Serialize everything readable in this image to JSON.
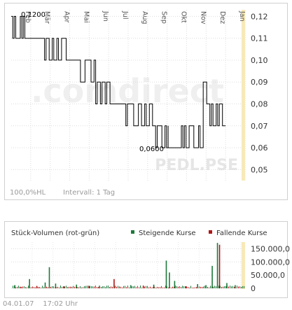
{
  "watermark": {
    "brand": ".comdirect",
    "ticker": "PEDL.PSE"
  },
  "price_chart": {
    "status": {
      "scale": "100,0%HL",
      "interval": "Intervall: 1 Tag"
    },
    "high_label": "0,1200",
    "low_label": "0,0600",
    "colors": {
      "line": "#000000",
      "grid": "#d9d9d9",
      "band": "#f7e9b8",
      "watermark": "#efefef"
    }
  },
  "volume_chart": {
    "title": "Stück-Volumen (rot-grün)",
    "legend": [
      {
        "label": "Steigende Kurse",
        "color": "#1d7a3a"
      },
      {
        "label": "Fallende Kurse",
        "color": "#b01616"
      }
    ]
  },
  "footer": {
    "date": "04.01.07",
    "time": "17:02 Uhr"
  },
  "chart_data": [
    {
      "type": "line",
      "x_ticks": [
        "Feb",
        "Mär",
        "Apr",
        "Mai",
        "Jun",
        "Jul",
        "Aug",
        "Sep",
        "Okt",
        "Nov",
        "Dez",
        "Jan"
      ],
      "y_ticks": [
        "0,12",
        "0,11",
        "0,10",
        "0,09",
        "0,08",
        "0,07",
        "0,06",
        "0,05"
      ],
      "ylim": [
        0.045,
        0.123
      ],
      "y_tick_values": [
        0.12,
        0.11,
        0.1,
        0.09,
        0.08,
        0.07,
        0.06,
        0.05
      ],
      "high": 0.12,
      "low": 0.06,
      "segments": [
        {
          "from": 0.0,
          "to": 0.7,
          "low": 0.11,
          "high": 0.12,
          "dense": true
        },
        {
          "from": 0.7,
          "to": 1.55,
          "low": 0.11,
          "high": 0.11,
          "dense": false
        },
        {
          "from": 1.55,
          "to": 2.9,
          "low": 0.1,
          "high": 0.11,
          "dense": true
        },
        {
          "from": 2.9,
          "to": 3.4,
          "low": 0.1,
          "high": 0.1,
          "dense": false
        },
        {
          "from": 3.4,
          "to": 4.25,
          "low": 0.09,
          "high": 0.1,
          "dense": true
        },
        {
          "from": 4.25,
          "to": 5.15,
          "low": 0.08,
          "high": 0.09,
          "dense": true
        },
        {
          "from": 5.15,
          "to": 5.8,
          "low": 0.08,
          "high": 0.08,
          "dense": false
        },
        {
          "from": 5.8,
          "to": 7.25,
          "low": 0.07,
          "high": 0.08,
          "dense": true
        },
        {
          "from": 7.25,
          "to": 8.05,
          "low": 0.06,
          "high": 0.07,
          "dense": true
        },
        {
          "from": 8.05,
          "to": 8.65,
          "low": 0.06,
          "high": 0.06,
          "dense": false
        },
        {
          "from": 8.65,
          "to": 9.85,
          "low": 0.06,
          "high": 0.07,
          "dense": true
        },
        {
          "from": 9.85,
          "to": 9.95,
          "low": 0.07,
          "high": 0.09,
          "dense": false
        },
        {
          "from": 9.95,
          "to": 11.0,
          "low": 0.07,
          "high": 0.08,
          "dense": true
        }
      ]
    },
    {
      "type": "bar",
      "y_ticks": [
        "150.000,0",
        "100.000,0",
        "50.000,0",
        "0"
      ],
      "y_tick_values": [
        150000,
        100000,
        50000,
        0
      ],
      "ylim": [
        0,
        175000
      ],
      "bars": [
        {
          "x": 0.15,
          "value": 12000,
          "dir": "up"
        },
        {
          "x": 0.4,
          "value": 6000,
          "dir": "down"
        },
        {
          "x": 0.85,
          "value": 35000,
          "dir": "up"
        },
        {
          "x": 1.2,
          "value": 9000,
          "dir": "down"
        },
        {
          "x": 1.6,
          "value": 22000,
          "dir": "up"
        },
        {
          "x": 1.8,
          "value": 80000,
          "dir": "up"
        },
        {
          "x": 2.1,
          "value": 18000,
          "dir": "up"
        },
        {
          "x": 2.5,
          "value": 7000,
          "dir": "down"
        },
        {
          "x": 3.1,
          "value": 14000,
          "dir": "up"
        },
        {
          "x": 3.7,
          "value": 9000,
          "dir": "down"
        },
        {
          "x": 4.2,
          "value": 10000,
          "dir": "up"
        },
        {
          "x": 4.9,
          "value": 35000,
          "dir": "down"
        },
        {
          "x": 5.7,
          "value": 12000,
          "dir": "up"
        },
        {
          "x": 6.3,
          "value": 10000,
          "dir": "down"
        },
        {
          "x": 6.8,
          "value": 14000,
          "dir": "up"
        },
        {
          "x": 7.4,
          "value": 105000,
          "dir": "up"
        },
        {
          "x": 7.55,
          "value": 60000,
          "dir": "up"
        },
        {
          "x": 7.8,
          "value": 28000,
          "dir": "up"
        },
        {
          "x": 8.35,
          "value": 8000,
          "dir": "down"
        },
        {
          "x": 8.9,
          "value": 16000,
          "dir": "up"
        },
        {
          "x": 9.3,
          "value": 12000,
          "dir": "up"
        },
        {
          "x": 9.6,
          "value": 85000,
          "dir": "up"
        },
        {
          "x": 9.85,
          "value": 172000,
          "dir": "up"
        },
        {
          "x": 9.95,
          "value": 165000,
          "dir": "down"
        },
        {
          "x": 10.3,
          "value": 20000,
          "dir": "up"
        },
        {
          "x": 10.7,
          "value": 12000,
          "dir": "up"
        }
      ]
    }
  ]
}
